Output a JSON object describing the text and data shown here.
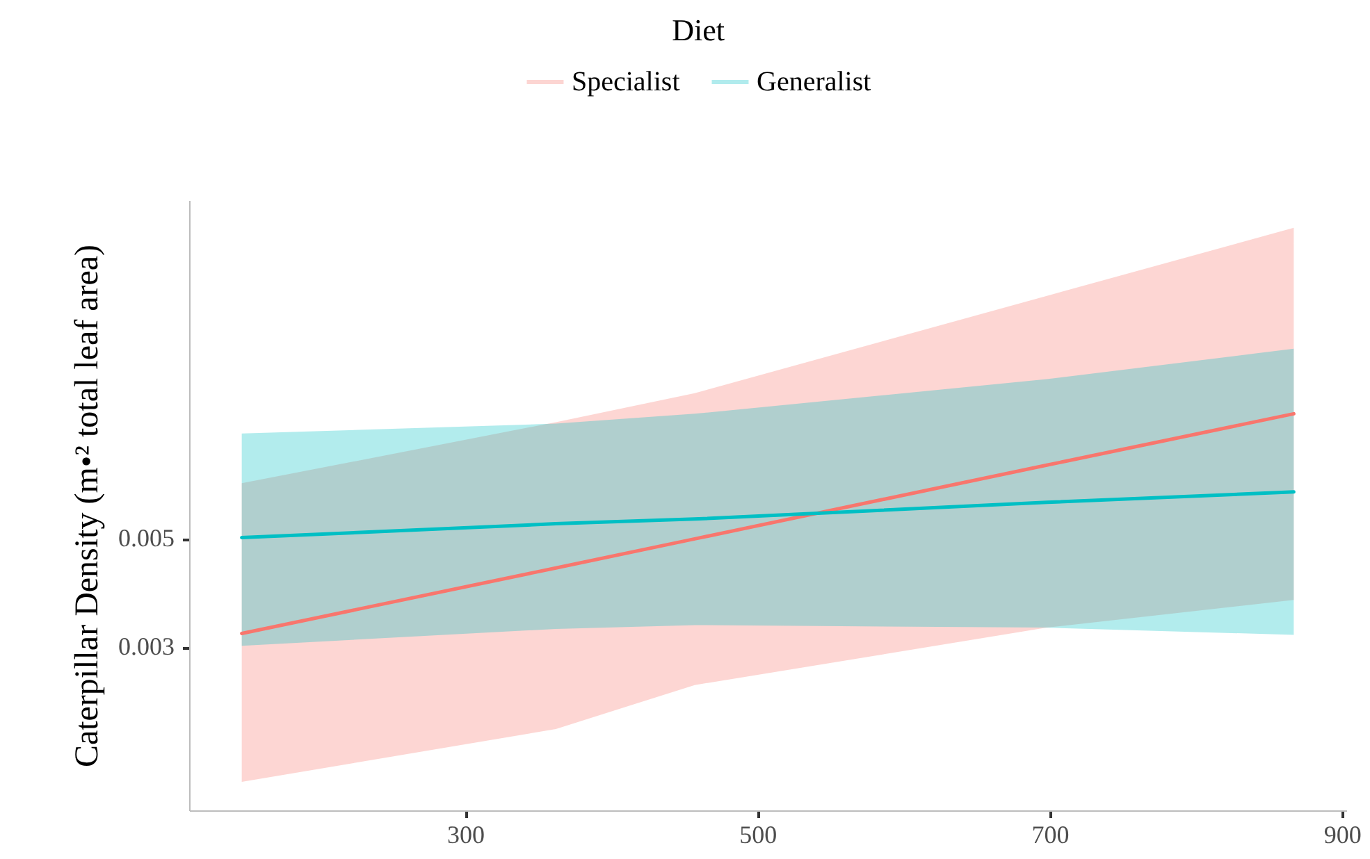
{
  "chart_data": {
    "type": "line",
    "ylabel": "Caterpillar Density (m•² total leaf area)",
    "legend_title": "Diet",
    "legend": "top",
    "log": true,
    "grid": false,
    "x": [
      147,
      362,
      457,
      698,
      867
    ],
    "xlim": [
      111,
      903
    ],
    "xticks": [
      300,
      500,
      700,
      900
    ],
    "ylim": [
      0.00139,
      0.0247
    ],
    "yticks": [
      0.003,
      0.005
    ],
    "series": [
      {
        "name": "Specialist",
        "color": "#f8766d",
        "values": [
          0.0032,
          0.00436,
          0.005,
          0.00708,
          0.00902
        ],
        "lower": [
          0.00159,
          0.00204,
          0.00251,
          0.00329,
          0.00375
        ],
        "upper": [
          0.0065,
          0.00867,
          0.00994,
          0.01573,
          0.02168
        ]
      },
      {
        "name": "Generalist",
        "color": "#00bfc4",
        "values": [
          0.00503,
          0.00537,
          0.00549,
          0.00594,
          0.00624
        ],
        "lower": [
          0.00302,
          0.00327,
          0.00333,
          0.00329,
          0.00318
        ],
        "upper": [
          0.00822,
          0.00861,
          0.00902,
          0.01062,
          0.01226
        ]
      }
    ]
  }
}
